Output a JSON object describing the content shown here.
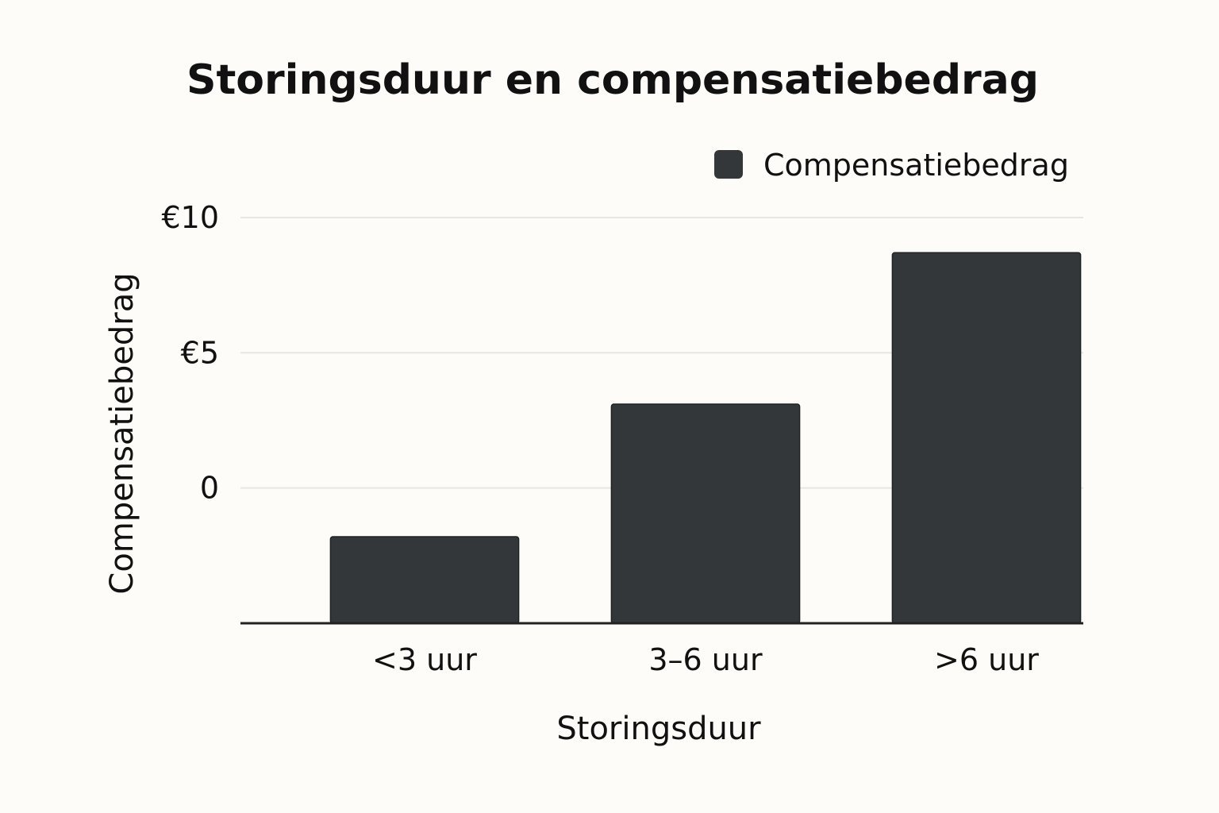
{
  "chart_data": {
    "type": "bar",
    "title": "Storingsduur en compensatiebedrag",
    "xlabel": "Storingsduur",
    "ylabel": "Compensatiebedrag",
    "categories": [
      "<3 uur",
      "3–6 uur",
      ">6 uur"
    ],
    "series": [
      {
        "name": "Compensatiebedrag",
        "values": [
          -1.8,
          3.1,
          8.7
        ],
        "color": "#33373a"
      }
    ],
    "ylim": [
      -5,
      10
    ],
    "yticks": [
      {
        "value": 10,
        "label": "€10"
      },
      {
        "value": 5,
        "label": "€5"
      },
      {
        "value": 0,
        "label": "0"
      }
    ],
    "grid": true,
    "legend_position": "top-right"
  }
}
